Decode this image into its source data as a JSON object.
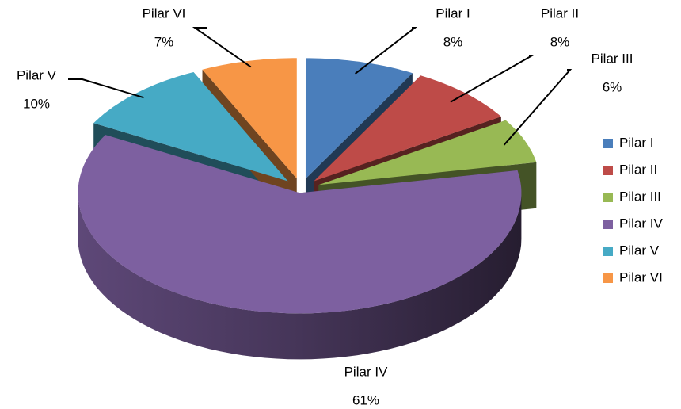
{
  "chart_data": {
    "type": "pie3d",
    "categories": [
      "Pilar I",
      "Pilar II",
      "Pilar III",
      "Pilar IV",
      "Pilar V",
      "Pilar VI"
    ],
    "values": [
      8,
      8,
      6,
      61,
      10,
      7
    ],
    "value_labels": [
      "8%",
      "8%",
      "6%",
      "61%",
      "10%",
      "7%"
    ],
    "colors": [
      "#4a7ebb",
      "#be4b48",
      "#98b954",
      "#7d60a0",
      "#46aac5",
      "#f79646"
    ],
    "legend": "right"
  }
}
